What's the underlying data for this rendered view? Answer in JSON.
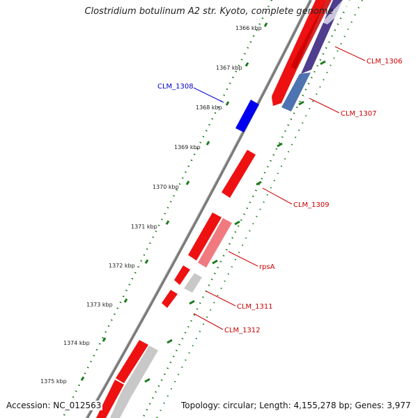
{
  "title": "Clostridium botulinum A2 str. Kyoto, complete genome",
  "footer": {
    "accession": "Accession: NC_012563",
    "topology": "Topology: circular; Length: 4,155,278 bp; Genes: 3,977"
  },
  "colors": {
    "backbone": "#7a7a7a",
    "forward_cds": "#ee1111",
    "reverse_cds": "#ee1111",
    "highlight_gene": "#0000ee",
    "gene_product": "#4d74b0",
    "product_dark": "#4f3d8e",
    "rna": "#c8c8c8",
    "pink": "#f07a80",
    "ticks": "#1a7a1a",
    "label_red": "#cc0000",
    "label_blue": "#0000cc"
  },
  "scale_labels": [
    "1366 kbp",
    "1367 kbp",
    "1368 kbp",
    "1369 kbp",
    "1370 kbp",
    "1371 kbp",
    "1372 kbp",
    "1373 kbp",
    "1374 kbp",
    "1375 kbp"
  ],
  "gene_labels": [
    {
      "id": "CLM_1306",
      "color": "#cc0000"
    },
    {
      "id": "CLM_1307",
      "color": "#cc0000"
    },
    {
      "id": "CLM_1308",
      "color": "#0000cc"
    },
    {
      "id": "CLM_1309",
      "color": "#cc0000"
    },
    {
      "id": "rpsA",
      "color": "#cc0000"
    },
    {
      "id": "CLM_1311",
      "color": "#cc0000"
    },
    {
      "id": "CLM_1312",
      "color": "#cc0000"
    }
  ]
}
